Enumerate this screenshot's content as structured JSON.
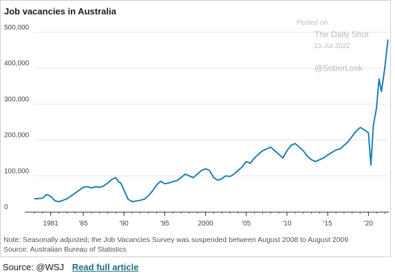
{
  "chart_data": {
    "type": "line",
    "title": "Job vacancies in Australia",
    "xlabel": "",
    "ylabel": "",
    "ylim": [
      0,
      500000
    ],
    "xlim": [
      1979,
      2022.5
    ],
    "y_ticks": [
      0,
      100000,
      200000,
      300000,
      400000,
      500000
    ],
    "y_tick_labels": [
      "0",
      "100,000",
      "200,000",
      "300,000",
      "400,000",
      "500,000"
    ],
    "x_ticks": [
      1981,
      1985,
      1990,
      1995,
      2000,
      2005,
      2010,
      2015,
      2020
    ],
    "x_tick_labels": [
      "1981",
      "'85",
      "'90",
      "'95",
      "2000",
      "'05",
      "'10",
      "'15",
      "'20"
    ],
    "grid": "horizontal",
    "line_color": "#1a7fb3",
    "series": [
      {
        "x": [
          1979.0,
          1980.0,
          1980.5,
          1981.0,
          1981.5,
          1982.0,
          1982.5,
          1983.0,
          1983.5,
          1984.0,
          1984.5,
          1985.0,
          1985.5,
          1986.0,
          1986.5,
          1987.0,
          1987.5,
          1988.0,
          1988.5,
          1989.0,
          1989.3,
          1989.6,
          1990.0,
          1990.5,
          1991.0,
          1991.5,
          1992.0,
          1992.5,
          1993.0,
          1993.5,
          1994.0,
          1994.5,
          1995.0,
          1995.5,
          1996.0,
          1996.5,
          1997.0,
          1997.5,
          1998.0,
          1998.5,
          1999.0,
          1999.5,
          2000.0,
          2000.5,
          2001.0,
          2001.5,
          2002.0,
          2002.5,
          2003.0,
          2003.5,
          2004.0,
          2004.5,
          2005.0,
          2005.5,
          2006.0,
          2006.5,
          2007.0,
          2007.5,
          2008.0,
          2008.5,
          2009.0,
          2009.5,
          2010.0,
          2010.5,
          2011.0,
          2011.5,
          2012.0,
          2012.5,
          2013.0,
          2013.5,
          2014.0,
          2014.5,
          2015.0,
          2015.5,
          2016.0,
          2016.5,
          2017.0,
          2017.5,
          2018.0,
          2018.5,
          2019.0,
          2019.5,
          2020.0,
          2020.3,
          2020.6,
          2021.0,
          2021.3,
          2021.6,
          2022.0,
          2022.4
        ],
        "values": [
          36000,
          38000,
          48000,
          43000,
          31000,
          28000,
          32000,
          36000,
          44000,
          52000,
          60000,
          68000,
          70000,
          66000,
          70000,
          68000,
          72000,
          80000,
          90000,
          95000,
          84000,
          80000,
          60000,
          35000,
          28000,
          30000,
          32000,
          35000,
          45000,
          58000,
          75000,
          85000,
          78000,
          80000,
          84000,
          87000,
          95000,
          105000,
          100000,
          95000,
          105000,
          115000,
          120000,
          115000,
          95000,
          88000,
          92000,
          100000,
          98000,
          105000,
          115000,
          125000,
          140000,
          135000,
          150000,
          160000,
          170000,
          175000,
          180000,
          170000,
          160000,
          150000,
          170000,
          185000,
          190000,
          180000,
          170000,
          155000,
          145000,
          140000,
          145000,
          150000,
          158000,
          165000,
          172000,
          175000,
          185000,
          195000,
          210000,
          225000,
          235000,
          228000,
          220000,
          130000,
          240000,
          290000,
          370000,
          335000,
          400000,
          480000
        ]
      }
    ]
  },
  "watermark": {
    "posted_on": "Posted on",
    "site": "The Daily Shot",
    "date": "13-Jul-2022",
    "handle": "@SoberLook"
  },
  "notes": {
    "line1": "Note: Seasonally adjusted; the Job Vacancies Survey was suspended between August 2008 to August 2009",
    "line2": "Source: Australian Bureau of Statistics"
  },
  "footer": {
    "source": "Source: @WSJ",
    "link": "Read full article"
  }
}
